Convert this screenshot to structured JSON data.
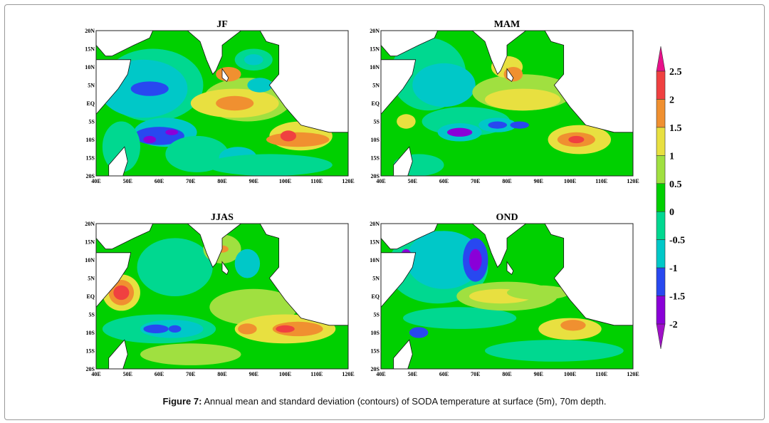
{
  "caption": {
    "label": "Figure 7:",
    "text": " Annual mean and standard deviation (contours) of SODA temperature at surface (5m), 70m depth."
  },
  "chart_data": {
    "type": "heatmap",
    "lon_ticks": [
      "40E",
      "50E",
      "60E",
      "70E",
      "80E",
      "90E",
      "100E",
      "110E",
      "120E"
    ],
    "lat_ticks": [
      "20N",
      "15N",
      "10N",
      "5N",
      "EQ",
      "5S",
      "10S",
      "15S",
      "20S"
    ],
    "lon_range": [
      40,
      120
    ],
    "lat_range": [
      -20,
      20
    ],
    "colorbar": {
      "labels": [
        "2.5",
        "2",
        "1.5",
        "1",
        "0.5",
        "0",
        "-0.5",
        "-1",
        "-1.5",
        "-2"
      ],
      "levels": [
        -2,
        -1.5,
        -1,
        -0.5,
        0,
        0.5,
        1,
        1.5,
        2,
        2.5
      ],
      "colors": [
        "#a010c8",
        "#8a00d8",
        "#2848f0",
        "#00c8c8",
        "#00d890",
        "#00d000",
        "#a0e040",
        "#e8e040",
        "#f09030",
        "#f04040",
        "#e8108a"
      ]
    },
    "panels": [
      {
        "title": "JF",
        "base": 5,
        "regions": [
          [
            58,
            5,
            16,
            10,
            4
          ],
          [
            55,
            4,
            14,
            8,
            3
          ],
          [
            57,
            4,
            6,
            2,
            2
          ],
          [
            62,
            -8,
            10,
            4,
            3
          ],
          [
            60,
            -9,
            8,
            2.5,
            2
          ],
          [
            57,
            -10,
            2,
            1,
            1
          ],
          [
            64,
            -8,
            2,
            0.8,
            1
          ],
          [
            48,
            -12,
            6,
            7,
            4
          ],
          [
            72,
            -14,
            10,
            5,
            4
          ],
          [
            85,
            -15,
            6,
            3,
            3
          ],
          [
            88,
            1,
            14,
            6,
            6
          ],
          [
            84,
            0,
            14,
            4,
            7
          ],
          [
            84,
            0,
            6,
            2,
            8
          ],
          [
            82,
            8,
            4,
            2,
            8
          ],
          [
            90,
            12,
            6,
            3,
            4
          ],
          [
            90,
            12,
            3,
            1.5,
            3
          ],
          [
            92,
            5,
            4,
            2,
            3
          ],
          [
            105,
            -9,
            10,
            4,
            7
          ],
          [
            104,
            -10,
            10,
            2,
            8
          ],
          [
            101,
            -9,
            2.5,
            1.5,
            9
          ],
          [
            116,
            15,
            4,
            5,
            8
          ],
          [
            95,
            -17,
            20,
            3,
            4
          ]
        ]
      },
      {
        "title": "MAM",
        "base": 5,
        "regions": [
          [
            55,
            8,
            12,
            10,
            4
          ],
          [
            60,
            5,
            10,
            6,
            3
          ],
          [
            67,
            -5,
            14,
            4,
            4
          ],
          [
            65,
            -8,
            7,
            2.5,
            3
          ],
          [
            65,
            -8,
            4,
            1.2,
            1
          ],
          [
            77,
            -6,
            6,
            2,
            3
          ],
          [
            77,
            -6,
            3,
            1,
            2
          ],
          [
            84,
            -6,
            3,
            1,
            2
          ],
          [
            85,
            3,
            16,
            5,
            6
          ],
          [
            85,
            1,
            12,
            3,
            7
          ],
          [
            80,
            10,
            5,
            3,
            7
          ],
          [
            82,
            8,
            3,
            2,
            8
          ],
          [
            103,
            -10,
            10,
            4,
            7
          ],
          [
            102,
            -10,
            6,
            2,
            8
          ],
          [
            102,
            -10,
            2.5,
            1,
            9
          ],
          [
            117,
            15,
            3,
            5,
            8
          ],
          [
            52,
            -17,
            8,
            3,
            4
          ],
          [
            48,
            -5,
            3,
            2,
            7
          ]
        ]
      },
      {
        "title": "JJAS",
        "base": 5,
        "regions": [
          [
            48,
            1,
            6,
            5,
            7
          ],
          [
            48,
            1,
            4,
            3.5,
            8
          ],
          [
            48,
            1,
            2.5,
            2,
            9
          ],
          [
            60,
            -9,
            18,
            4,
            4
          ],
          [
            64,
            -9,
            10,
            2.5,
            3
          ],
          [
            59,
            -9,
            4,
            1.2,
            2
          ],
          [
            65,
            -9,
            2,
            1,
            2
          ],
          [
            65,
            8,
            12,
            8,
            4
          ],
          [
            80,
            13,
            6,
            4,
            6
          ],
          [
            80,
            13,
            2,
            1,
            8
          ],
          [
            88,
            9,
            4,
            4,
            3
          ],
          [
            90,
            -3,
            14,
            5,
            6
          ],
          [
            100,
            -9,
            16,
            4,
            7
          ],
          [
            104,
            -9,
            8,
            2,
            8
          ],
          [
            100,
            -9,
            3,
            1,
            9
          ],
          [
            88,
            -9,
            3,
            1.5,
            8
          ],
          [
            118,
            12,
            3,
            5,
            8
          ],
          [
            70,
            -16,
            16,
            3,
            6
          ]
        ]
      },
      {
        "title": "OND",
        "base": 5,
        "regions": [
          [
            58,
            8,
            16,
            10,
            4
          ],
          [
            60,
            10,
            12,
            8,
            3
          ],
          [
            70,
            10,
            4,
            6,
            2
          ],
          [
            70,
            10,
            2,
            3,
            1
          ],
          [
            48,
            10,
            2,
            3,
            1
          ],
          [
            65,
            -6,
            18,
            3,
            4
          ],
          [
            52,
            -10,
            3,
            1.5,
            2
          ],
          [
            80,
            0,
            16,
            4,
            6
          ],
          [
            78,
            0,
            10,
            2,
            7
          ],
          [
            90,
            1,
            10,
            2,
            6
          ],
          [
            100,
            -9,
            10,
            3,
            7
          ],
          [
            101,
            -8,
            4,
            1.5,
            8
          ],
          [
            118,
            15,
            3,
            4,
            8
          ],
          [
            117,
            13,
            2,
            2,
            9
          ],
          [
            95,
            -15,
            22,
            3,
            4
          ]
        ]
      }
    ]
  }
}
